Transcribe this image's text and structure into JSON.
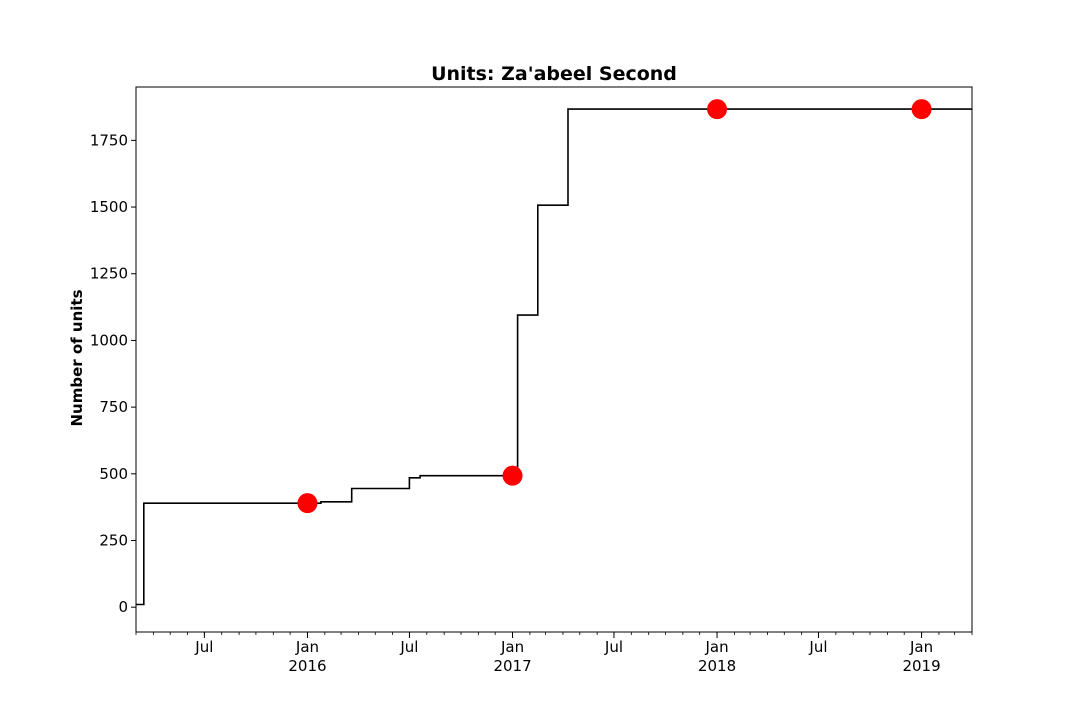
{
  "chart_data": {
    "type": "line",
    "title": "Units: Za'abeel Second",
    "xlabel": "",
    "ylabel": "Number of units",
    "x_axis_type": "date",
    "xlim": [
      "2015-03-01",
      "2019-04-01"
    ],
    "ylim": [
      -93,
      1950
    ],
    "yticks": [
      0,
      250,
      500,
      750,
      1000,
      1250,
      1500,
      1750
    ],
    "xticks": [
      {
        "date": "2015-07-01",
        "label": "Jul"
      },
      {
        "date": "2016-01-01",
        "label": "Jan",
        "sublabel": "2016"
      },
      {
        "date": "2016-07-01",
        "label": "Jul"
      },
      {
        "date": "2017-01-01",
        "label": "Jan",
        "sublabel": "2017"
      },
      {
        "date": "2017-07-01",
        "label": "Jul"
      },
      {
        "date": "2018-01-01",
        "label": "Jan",
        "sublabel": "2018"
      },
      {
        "date": "2018-07-01",
        "label": "Jul"
      },
      {
        "date": "2019-01-01",
        "label": "Jan",
        "sublabel": "2019"
      }
    ],
    "grid": false,
    "series": [
      {
        "style": "step",
        "color": "#000000",
        "points": [
          {
            "x": "2015-03-01",
            "y": 10
          },
          {
            "x": "2015-03-15",
            "y": 390
          },
          {
            "x": "2016-01-10",
            "y": 390
          },
          {
            "x": "2016-01-25",
            "y": 395
          },
          {
            "x": "2016-03-20",
            "y": 445
          },
          {
            "x": "2016-07-01",
            "y": 485
          },
          {
            "x": "2016-07-20",
            "y": 493
          },
          {
            "x": "2016-12-25",
            "y": 493
          },
          {
            "x": "2017-01-10",
            "y": 1095
          },
          {
            "x": "2017-02-15",
            "y": 1507
          },
          {
            "x": "2017-04-10",
            "y": 1867
          },
          {
            "x": "2019-04-01",
            "y": 1867
          }
        ]
      },
      {
        "style": "markers",
        "color": "#ff0000",
        "points": [
          {
            "x": "2016-01-01",
            "y": 390
          },
          {
            "x": "2017-01-01",
            "y": 493
          },
          {
            "x": "2018-01-01",
            "y": 1867
          },
          {
            "x": "2019-01-01",
            "y": 1867
          }
        ]
      }
    ]
  }
}
